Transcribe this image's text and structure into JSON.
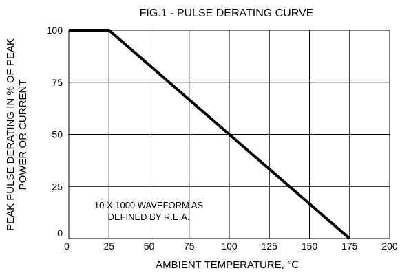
{
  "chart_data": {
    "type": "line",
    "title": "FIG.1 - PULSE DERATING CURVE",
    "xlabel": "AMBIENT TEMPERATURE, ℃",
    "ylabel_lines": [
      "PEAK PULSE DERATING IN % OF PEAK",
      "POWER OR CURRENT"
    ],
    "xlim": [
      0,
      200
    ],
    "ylim": [
      0,
      100
    ],
    "x_ticks": [
      0,
      25,
      50,
      75,
      100,
      125,
      150,
      175,
      200
    ],
    "y_ticks": [
      0,
      25,
      50,
      75,
      100
    ],
    "x_tick_labels": [
      "0",
      "25",
      "50",
      "75",
      "100",
      "125",
      "150",
      "175",
      "200"
    ],
    "y_tick_labels": [
      "0",
      "25",
      "50",
      "75",
      "100"
    ],
    "grid": true,
    "series": [
      {
        "x": [
          0,
          25,
          175
        ],
        "y": [
          100,
          100,
          0
        ]
      }
    ],
    "annotation_lines": [
      "10 X 1000 WAVEFORM AS",
      "DEFINED BY R.E.A."
    ]
  }
}
